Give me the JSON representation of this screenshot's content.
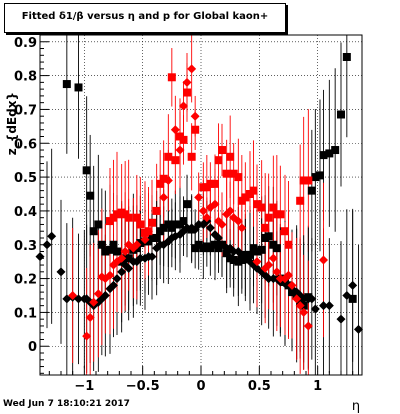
{
  "chart_data": {
    "type": "scatter",
    "title": "Fitted δ1/β versus η and p for Global kaon+",
    "xlabel": "η",
    "ylabel": "z_{dEdx}",
    "xlim": [
      -1.38,
      1.38
    ],
    "ylim": [
      -0.085,
      0.92
    ],
    "x_ticks": [
      -1,
      -0.5,
      0,
      0.5,
      1
    ],
    "x_tick_labels": [
      "−1",
      "−0.5",
      "0",
      "0.5",
      "1"
    ],
    "y_ticks": [
      0,
      0.1,
      0.2,
      0.3,
      0.4,
      0.5,
      0.6,
      0.7,
      0.8,
      0.9
    ],
    "y_tick_labels": [
      "0",
      "0.1",
      "0.2",
      "0.3",
      "0.4",
      "0.5",
      "0.6",
      "0.7",
      "0.8",
      "0.9"
    ],
    "grid": true,
    "series": [
      {
        "marker": "square",
        "color": "#000000",
        "x": [
          -1.15,
          -1.05,
          -0.98,
          -0.95,
          -0.92,
          -0.88,
          -0.85,
          -0.82,
          -0.78,
          -0.75,
          -0.72,
          -0.68,
          -0.65,
          -0.62,
          -0.58,
          -0.55,
          -0.52,
          -0.48,
          -0.45,
          -0.42,
          -0.38,
          -0.35,
          -0.32,
          -0.28,
          -0.25,
          -0.22,
          -0.18,
          -0.15,
          -0.12,
          -0.08,
          -0.05,
          -0.02,
          0.02,
          0.05,
          0.08,
          0.12,
          0.15,
          0.18,
          0.22,
          0.25,
          0.28,
          0.32,
          0.35,
          0.38,
          0.42,
          0.45,
          0.48,
          0.52,
          0.55,
          0.58,
          0.62,
          0.65,
          0.68,
          0.72,
          0.75,
          0.78,
          0.82,
          0.85,
          0.88,
          0.92,
          0.95,
          0.98,
          1.02,
          1.05,
          1.1,
          1.15,
          1.2,
          1.25,
          1.3
        ],
        "y": [
          0.775,
          0.765,
          0.52,
          0.445,
          0.34,
          0.36,
          0.3,
          0.28,
          0.285,
          0.3,
          0.28,
          0.25,
          0.26,
          0.26,
          0.285,
          0.29,
          0.305,
          0.31,
          0.31,
          0.32,
          0.32,
          0.34,
          0.35,
          0.36,
          0.35,
          0.36,
          0.36,
          0.37,
          0.42,
          0.345,
          0.29,
          0.3,
          0.29,
          0.295,
          0.29,
          0.3,
          0.29,
          0.3,
          0.275,
          0.26,
          0.255,
          0.25,
          0.255,
          0.27,
          0.27,
          0.29,
          0.28,
          0.285,
          0.32,
          0.325,
          0.3,
          0.29,
          0.2,
          0.19,
          0.18,
          0.16,
          0.15,
          0.13,
          0.12,
          0.145,
          0.46,
          0.5,
          0.505,
          0.565,
          0.57,
          0.58,
          0.685,
          0.855,
          0.14
        ]
      },
      {
        "marker": "square",
        "color": "#ff0000",
        "x": [
          -0.78,
          -0.75,
          -0.72,
          -0.68,
          -0.65,
          -0.62,
          -0.55,
          -0.52,
          -0.48,
          -0.45,
          -0.42,
          -0.38,
          -0.35,
          -0.32,
          -0.28,
          -0.25,
          -0.22,
          -0.18,
          -0.15,
          -0.12,
          -0.08,
          -0.05,
          0.02,
          0.05,
          0.08,
          0.12,
          0.15,
          0.18,
          0.22,
          0.25,
          0.28,
          0.32,
          0.35,
          0.38,
          0.42,
          0.45,
          0.48,
          0.52,
          0.55,
          0.58,
          0.62,
          0.65,
          0.68,
          0.72,
          0.75,
          0.85,
          0.88,
          0.92
        ],
        "y": [
          0.37,
          0.38,
          0.39,
          0.395,
          0.39,
          0.38,
          0.38,
          0.36,
          0.335,
          0.34,
          0.365,
          0.4,
          0.48,
          0.495,
          0.56,
          0.795,
          0.55,
          0.62,
          0.61,
          0.75,
          0.56,
          0.64,
          0.47,
          0.47,
          0.48,
          0.48,
          0.55,
          0.58,
          0.51,
          0.56,
          0.51,
          0.5,
          0.43,
          0.44,
          0.45,
          0.46,
          0.42,
          0.41,
          0.35,
          0.38,
          0.41,
          0.39,
          0.39,
          0.34,
          0.3,
          0.43,
          0.49,
          0.49
        ]
      },
      {
        "marker": "diamond",
        "color": "#000000",
        "x": [
          -1.38,
          -1.32,
          -1.28,
          -1.2,
          -1.15,
          -1.1,
          -1.05,
          -1.0,
          -0.98,
          -0.95,
          -0.92,
          -0.88,
          -0.85,
          -0.82,
          -0.78,
          -0.75,
          -0.72,
          -0.68,
          -0.65,
          -0.62,
          -0.58,
          -0.55,
          -0.52,
          -0.48,
          -0.45,
          -0.42,
          -0.38,
          -0.35,
          -0.32,
          -0.28,
          -0.25,
          -0.22,
          -0.18,
          -0.15,
          -0.12,
          -0.08,
          -0.05,
          -0.02,
          0.02,
          0.05,
          0.08,
          0.12,
          0.15,
          0.18,
          0.22,
          0.25,
          0.28,
          0.32,
          0.35,
          0.38,
          0.42,
          0.45,
          0.48,
          0.52,
          0.55,
          0.58,
          0.62,
          0.65,
          0.68,
          0.72,
          0.75,
          0.78,
          0.82,
          0.85,
          0.88,
          0.92,
          0.95,
          0.98,
          1.05,
          1.1,
          1.2,
          1.25,
          1.3,
          1.35
        ],
        "y": [
          0.265,
          0.3,
          0.325,
          0.22,
          0.14,
          0.145,
          0.14,
          0.14,
          0.14,
          0.13,
          0.12,
          0.13,
          0.14,
          0.15,
          0.17,
          0.18,
          0.2,
          0.22,
          0.24,
          0.23,
          0.25,
          0.25,
          0.26,
          0.26,
          0.265,
          0.265,
          0.29,
          0.3,
          0.3,
          0.31,
          0.32,
          0.325,
          0.33,
          0.34,
          0.35,
          0.35,
          0.345,
          0.36,
          0.36,
          0.37,
          0.35,
          0.33,
          0.32,
          0.3,
          0.29,
          0.29,
          0.28,
          0.28,
          0.27,
          0.255,
          0.25,
          0.24,
          0.23,
          0.22,
          0.21,
          0.2,
          0.2,
          0.2,
          0.19,
          0.185,
          0.18,
          0.17,
          0.16,
          0.15,
          0.14,
          0.14,
          0.14,
          0.11,
          0.12,
          0.12,
          0.08,
          0.15,
          0.18,
          0.05
        ]
      },
      {
        "marker": "diamond",
        "color": "#ff0000",
        "x": [
          -1.1,
          -0.98,
          -0.95,
          -0.92,
          -0.88,
          -0.85,
          -0.82,
          -0.78,
          -0.75,
          -0.72,
          -0.68,
          -0.65,
          -0.62,
          -0.58,
          -0.55,
          -0.48,
          -0.45,
          -0.32,
          -0.28,
          -0.22,
          -0.18,
          -0.15,
          -0.12,
          -0.08,
          -0.05,
          -0.02,
          0.02,
          0.05,
          0.08,
          0.12,
          0.15,
          0.18,
          0.22,
          0.25,
          0.28,
          0.32,
          0.35,
          0.48,
          0.55,
          0.58,
          0.62,
          0.65,
          0.68,
          0.72,
          0.75,
          0.78,
          0.82,
          0.85,
          0.88,
          0.92,
          1.05
        ],
        "y": [
          0.15,
          0.03,
          0.085,
          0.13,
          0.155,
          0.205,
          0.2,
          0.21,
          0.24,
          0.25,
          0.26,
          0.28,
          0.3,
          0.29,
          0.3,
          0.315,
          0.34,
          0.44,
          0.49,
          0.64,
          0.58,
          0.71,
          0.78,
          0.82,
          0.68,
          0.44,
          0.4,
          0.38,
          0.41,
          0.42,
          0.37,
          0.36,
          0.39,
          0.4,
          0.38,
          0.37,
          0.35,
          0.25,
          0.23,
          0.24,
          0.26,
          0.22,
          0.2,
          0.2,
          0.21,
          0.18,
          0.14,
          0.12,
          0.1,
          0.06,
          0.255
        ]
      }
    ]
  },
  "footer": {
    "timestamp": "Wed Jun  7 18:10:21 2017"
  }
}
